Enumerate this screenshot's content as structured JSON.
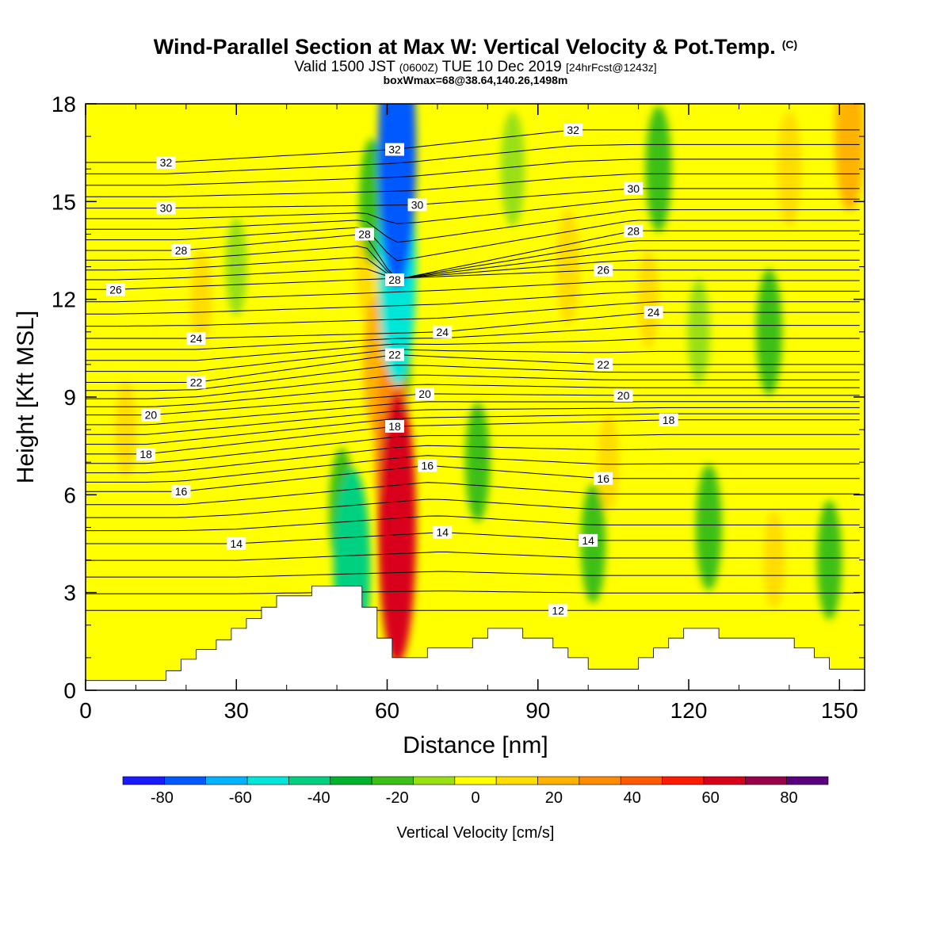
{
  "title": {
    "main": "Wind-Parallel Section at Max W: Vertical Velocity & Pot.Temp.",
    "mark": "(C)",
    "valid_prefix": "Valid 1500 JST",
    "valid_utc": "(0600Z)",
    "valid_date": "TUE 10 Dec 2019",
    "valid_fcst": "[24hrFcst@1243z]",
    "box": "boxWmax=68@38.64,140.26,1498m"
  },
  "chart_data": {
    "type": "heatmap",
    "xlabel": "Distance [nm]",
    "ylabel": "Height [Kft MSL]",
    "xlim": [
      0,
      155
    ],
    "ylim": [
      0,
      18
    ],
    "xticks": [
      0,
      30,
      60,
      90,
      120,
      150
    ],
    "yticks": [
      0,
      3,
      6,
      9,
      12,
      15,
      18
    ],
    "colorbar": {
      "label": "Vertical Velocity [cm/s]",
      "ticks": [
        -80,
        -60,
        -40,
        -20,
        0,
        20,
        40,
        60,
        80
      ],
      "bounds": [
        -90,
        90
      ],
      "colors": [
        "#1a1aff",
        "#0059ff",
        "#00b3ff",
        "#00e6d9",
        "#00d180",
        "#00b32e",
        "#3cbf16",
        "#99e012",
        "#ffff00",
        "#ffdd00",
        "#ffb300",
        "#ff8c00",
        "#ff5a00",
        "#ff1a00",
        "#d9001a",
        "#99004c",
        "#5a007f"
      ]
    },
    "background_level": 0,
    "velocity_features": [
      {
        "x": 62,
        "y": 16.5,
        "value": -78
      },
      {
        "x": 62,
        "y": 13,
        "value": -50
      },
      {
        "x": 62,
        "y": 10,
        "value": -20
      },
      {
        "x": 57,
        "y": 15,
        "value": -18
      },
      {
        "x": 62,
        "y": 5,
        "value": 62
      },
      {
        "x": 61,
        "y": 7.5,
        "value": 35
      },
      {
        "x": 58,
        "y": 10,
        "value": 22
      },
      {
        "x": 56,
        "y": 13,
        "value": 12
      },
      {
        "x": 53,
        "y": 3.8,
        "value": -38
      },
      {
        "x": 51,
        "y": 5.5,
        "value": -18
      },
      {
        "x": 8,
        "y": 8,
        "value": 10
      },
      {
        "x": 23,
        "y": 12,
        "value": 10
      },
      {
        "x": 30,
        "y": 13,
        "value": -10
      },
      {
        "x": 85,
        "y": 16,
        "value": -15
      },
      {
        "x": 96,
        "y": 13,
        "value": 15
      },
      {
        "x": 104,
        "y": 7,
        "value": 10
      },
      {
        "x": 114,
        "y": 16,
        "value": -18
      },
      {
        "x": 112,
        "y": 12,
        "value": 10
      },
      {
        "x": 124,
        "y": 5,
        "value": -18
      },
      {
        "x": 122,
        "y": 11,
        "value": -12
      },
      {
        "x": 136,
        "y": 11,
        "value": -18
      },
      {
        "x": 137,
        "y": 4,
        "value": 10
      },
      {
        "x": 148,
        "y": 4,
        "value": -16
      },
      {
        "x": 152,
        "y": 17,
        "value": 25
      },
      {
        "x": 140,
        "y": 16,
        "value": 15
      },
      {
        "x": 78,
        "y": 7,
        "value": -16
      },
      {
        "x": 101,
        "y": 4.5,
        "value": -16
      }
    ],
    "terrain_kft": [
      {
        "x": 0,
        "y": 0.3
      },
      {
        "x": 16,
        "y": 0.3
      },
      {
        "x": 16,
        "y": 0.6
      },
      {
        "x": 19,
        "y": 0.6
      },
      {
        "x": 19,
        "y": 0.95
      },
      {
        "x": 22,
        "y": 0.95
      },
      {
        "x": 22,
        "y": 1.25
      },
      {
        "x": 26,
        "y": 1.25
      },
      {
        "x": 26,
        "y": 1.55
      },
      {
        "x": 29,
        "y": 1.55
      },
      {
        "x": 29,
        "y": 1.9
      },
      {
        "x": 32,
        "y": 1.9
      },
      {
        "x": 32,
        "y": 2.2
      },
      {
        "x": 35,
        "y": 2.2
      },
      {
        "x": 35,
        "y": 2.55
      },
      {
        "x": 38,
        "y": 2.55
      },
      {
        "x": 38,
        "y": 2.9
      },
      {
        "x": 45,
        "y": 2.9
      },
      {
        "x": 45,
        "y": 3.2
      },
      {
        "x": 55,
        "y": 3.2
      },
      {
        "x": 55,
        "y": 2.55
      },
      {
        "x": 58,
        "y": 2.55
      },
      {
        "x": 58,
        "y": 1.6
      },
      {
        "x": 61,
        "y": 1.6
      },
      {
        "x": 61,
        "y": 1.0
      },
      {
        "x": 68,
        "y": 1.0
      },
      {
        "x": 68,
        "y": 1.3
      },
      {
        "x": 77,
        "y": 1.3
      },
      {
        "x": 77,
        "y": 1.6
      },
      {
        "x": 80,
        "y": 1.6
      },
      {
        "x": 80,
        "y": 1.9
      },
      {
        "x": 87,
        "y": 1.9
      },
      {
        "x": 87,
        "y": 1.6
      },
      {
        "x": 93,
        "y": 1.6
      },
      {
        "x": 93,
        "y": 1.3
      },
      {
        "x": 96,
        "y": 1.3
      },
      {
        "x": 96,
        "y": 1.0
      },
      {
        "x": 100,
        "y": 1.0
      },
      {
        "x": 100,
        "y": 0.65
      },
      {
        "x": 110,
        "y": 0.65
      },
      {
        "x": 110,
        "y": 1.0
      },
      {
        "x": 113,
        "y": 1.0
      },
      {
        "x": 113,
        "y": 1.3
      },
      {
        "x": 116,
        "y": 1.3
      },
      {
        "x": 116,
        "y": 1.6
      },
      {
        "x": 119,
        "y": 1.6
      },
      {
        "x": 119,
        "y": 1.9
      },
      {
        "x": 126,
        "y": 1.9
      },
      {
        "x": 126,
        "y": 1.6
      },
      {
        "x": 141,
        "y": 1.6
      },
      {
        "x": 141,
        "y": 1.3
      },
      {
        "x": 145,
        "y": 1.3
      },
      {
        "x": 145,
        "y": 1.0
      },
      {
        "x": 148,
        "y": 1.0
      },
      {
        "x": 148,
        "y": 0.65
      },
      {
        "x": 155,
        "y": 0.65
      }
    ],
    "theta_labels": [
      {
        "text": "32",
        "x": 16,
        "y": 16.2
      },
      {
        "text": "30",
        "x": 16,
        "y": 14.8
      },
      {
        "text": "28",
        "x": 19,
        "y": 13.5
      },
      {
        "text": "26",
        "x": 6,
        "y": 12.3
      },
      {
        "text": "24",
        "x": 22,
        "y": 10.8
      },
      {
        "text": "22",
        "x": 22,
        "y": 9.45
      },
      {
        "text": "20",
        "x": 13,
        "y": 8.45
      },
      {
        "text": "18",
        "x": 12,
        "y": 7.25
      },
      {
        "text": "16",
        "x": 19,
        "y": 6.1
      },
      {
        "text": "14",
        "x": 30,
        "y": 4.5
      },
      {
        "text": "32",
        "x": 61.5,
        "y": 16.6
      },
      {
        "text": "30",
        "x": 66,
        "y": 14.9
      },
      {
        "text": "28",
        "x": 55.5,
        "y": 14.0
      },
      {
        "text": "28",
        "x": 61.5,
        "y": 12.6
      },
      {
        "text": "24",
        "x": 71,
        "y": 11.0
      },
      {
        "text": "22",
        "x": 61.5,
        "y": 10.3
      },
      {
        "text": "20",
        "x": 67.5,
        "y": 9.1
      },
      {
        "text": "18",
        "x": 61.5,
        "y": 8.1
      },
      {
        "text": "16",
        "x": 68,
        "y": 6.9
      },
      {
        "text": "14",
        "x": 71,
        "y": 4.85
      },
      {
        "text": "12",
        "x": 94,
        "y": 2.45
      },
      {
        "text": "32",
        "x": 97,
        "y": 17.2
      },
      {
        "text": "30",
        "x": 109,
        "y": 15.4
      },
      {
        "text": "28",
        "x": 109,
        "y": 14.1
      },
      {
        "text": "26",
        "x": 103,
        "y": 12.9
      },
      {
        "text": "24",
        "x": 113,
        "y": 11.6
      },
      {
        "text": "22",
        "x": 103,
        "y": 10.0
      },
      {
        "text": "20",
        "x": 107,
        "y": 9.05
      },
      {
        "text": "18",
        "x": 116,
        "y": 8.3
      },
      {
        "text": "16",
        "x": 103,
        "y": 6.5
      },
      {
        "text": "14",
        "x": 100,
        "y": 4.6
      }
    ]
  }
}
